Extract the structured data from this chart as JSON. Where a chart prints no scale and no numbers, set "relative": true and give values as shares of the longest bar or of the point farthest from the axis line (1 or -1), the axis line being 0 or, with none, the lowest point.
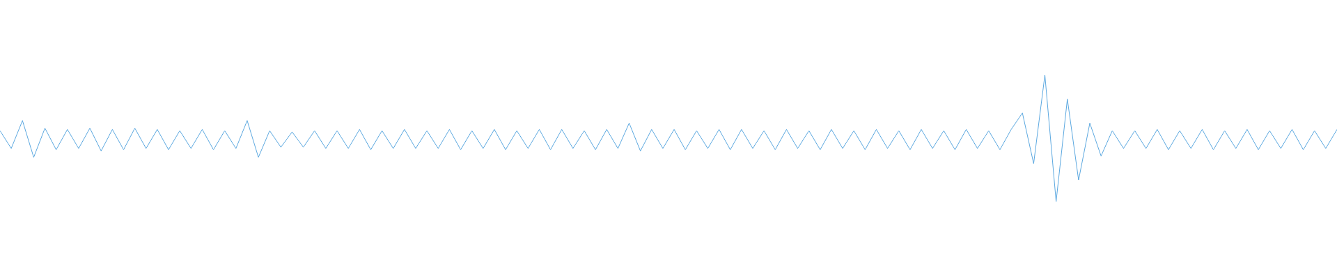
{
  "chart_data": {
    "type": "line",
    "relative": true,
    "color": "#5ba8e0",
    "categories": [
      null,
      null,
      null,
      null,
      null,
      null,
      null,
      null,
      null,
      null,
      null,
      null,
      null,
      null,
      null,
      null,
      null,
      null,
      null,
      null,
      null,
      null,
      null,
      null,
      null,
      null,
      null,
      null,
      null,
      null,
      null,
      null,
      null,
      null,
      null,
      null,
      null,
      null,
      null,
      null,
      null,
      null,
      null,
      null,
      null,
      null,
      null,
      null,
      null,
      null,
      null,
      null,
      null,
      null,
      null,
      null,
      null,
      null,
      null,
      null,
      null,
      null,
      null,
      null,
      null,
      null,
      null,
      null,
      null,
      null,
      null,
      null,
      null,
      null,
      null,
      null,
      null,
      null,
      null,
      null,
      null,
      null,
      null,
      null,
      null,
      null,
      null,
      null,
      null,
      null,
      null,
      null,
      null,
      null,
      null,
      null,
      null,
      null,
      null,
      null,
      null,
      null,
      null,
      null,
      null,
      null,
      null,
      null,
      null,
      null,
      null,
      null,
      null,
      null,
      null,
      null,
      null,
      null,
      null,
      null
    ],
    "values": [
      0.56,
      0.42,
      0.64,
      0.35,
      0.58,
      0.41,
      0.57,
      0.42,
      0.58,
      0.4,
      0.57,
      0.41,
      0.58,
      0.42,
      0.57,
      0.41,
      0.56,
      0.42,
      0.57,
      0.41,
      0.56,
      0.42,
      0.64,
      0.35,
      0.56,
      0.43,
      0.55,
      0.43,
      0.56,
      0.42,
      0.56,
      0.42,
      0.57,
      0.41,
      0.56,
      0.42,
      0.57,
      0.42,
      0.56,
      0.42,
      0.57,
      0.41,
      0.56,
      0.42,
      0.57,
      0.41,
      0.56,
      0.42,
      0.57,
      0.41,
      0.57,
      0.42,
      0.56,
      0.41,
      0.57,
      0.42,
      0.62,
      0.4,
      0.57,
      0.42,
      0.57,
      0.41,
      0.56,
      0.42,
      0.57,
      0.41,
      0.57,
      0.42,
      0.56,
      0.41,
      0.57,
      0.42,
      0.56,
      0.41,
      0.57,
      0.42,
      0.56,
      0.41,
      0.57,
      0.42,
      0.56,
      0.41,
      0.57,
      0.42,
      0.56,
      0.41,
      0.57,
      0.42,
      0.56,
      0.41,
      0.57,
      0.7,
      0.3,
      1,
      0,
      0.81,
      0.17,
      0.62,
      0.36,
      0.56,
      0.42,
      0.56,
      0.42,
      0.57,
      0.41,
      0.56,
      0.42,
      0.57,
      0.41,
      0.56,
      0.42,
      0.57,
      0.41,
      0.56,
      0.42,
      0.57,
      0.41,
      0.56,
      0.42,
      0.57
    ]
  }
}
